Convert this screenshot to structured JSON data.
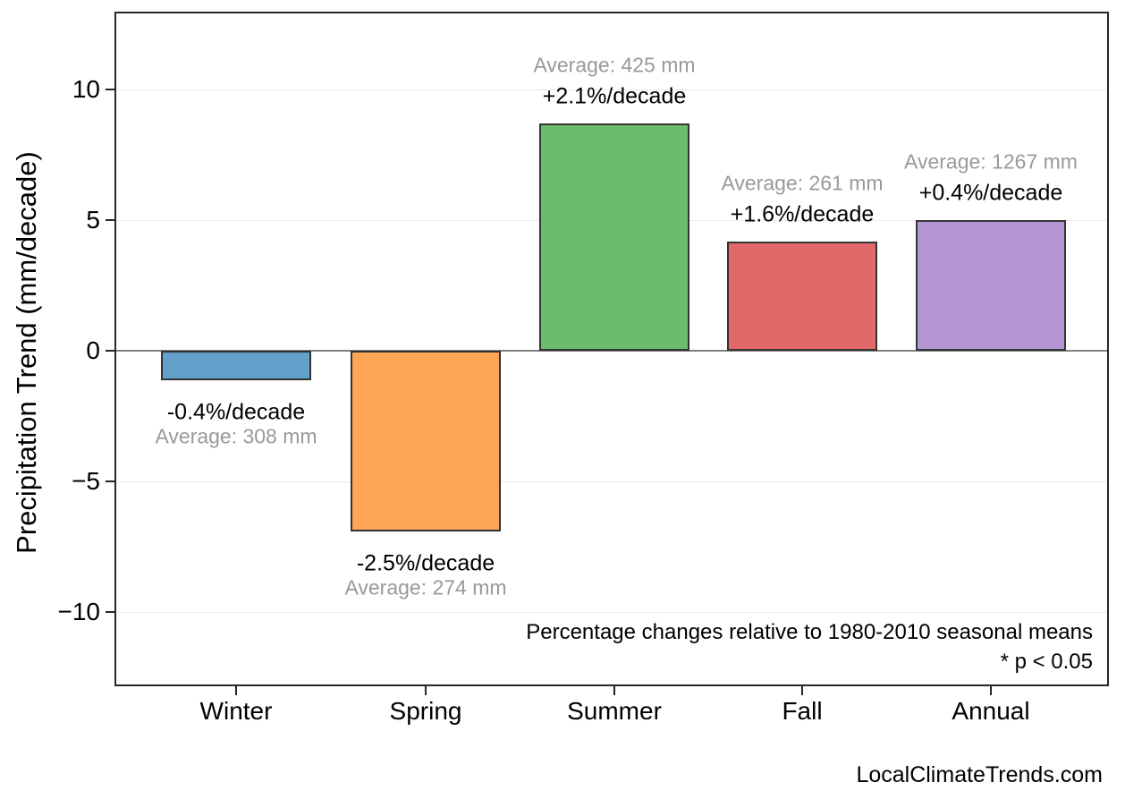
{
  "figure": {
    "footer": "LocalClimateTrends.com"
  },
  "colors": {
    "frame": "#262626",
    "gridline": "#ebebeb",
    "zero_line": "#808080",
    "bar_edge": "#333333",
    "secondary_text": "#999999",
    "primary_text": "#000000"
  },
  "chart_data": {
    "type": "bar",
    "title": "",
    "categories": [
      "Winter",
      "Spring",
      "Summer",
      "Fall",
      "Annual"
    ],
    "values": [
      -1.1,
      -6.9,
      8.7,
      4.2,
      5.0
    ],
    "value_unit": "mm/decade",
    "pct_change_labels": [
      "-0.4%/decade",
      "-2.5%/decade",
      "+2.1%/decade",
      "+1.6%/decade",
      "+0.4%/decade"
    ],
    "average_mm": [
      308,
      274,
      425,
      261,
      1267
    ],
    "average_labels": [
      "Average: 308 mm",
      "Average: 274 mm",
      "Average: 425 mm",
      "Average: 261 mm",
      "Average: 1267 mm"
    ],
    "bar_colors": [
      "#62A0CA",
      "#FFA556",
      "#6BBD6B",
      "#E26869",
      "#B495D3"
    ],
    "xlabel": "",
    "ylabel": "Precipitation Trend (mm/decade)",
    "yticks": [
      10,
      5,
      0,
      -5,
      -10
    ],
    "yticklabels": [
      "10",
      "5",
      "0",
      "−5",
      "−10"
    ],
    "ylim": [
      -12.8,
      13
    ],
    "grid": true,
    "zero_line": true,
    "legend_position": "none",
    "annotations": [
      "Percentage changes relative to 1980-2010 seasonal means",
      "* p < 0.05"
    ]
  }
}
